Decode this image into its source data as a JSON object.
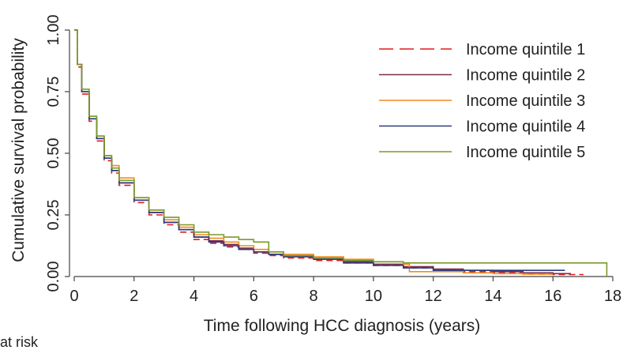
{
  "chart_data": {
    "type": "line",
    "title": "",
    "xlabel": "Time following HCC diagnosis (years)",
    "ylabel": "Cumulative survival probability",
    "xlim": [
      0,
      18
    ],
    "ylim": [
      0,
      1
    ],
    "x_ticks": [
      "0",
      "2",
      "4",
      "6",
      "8",
      "10",
      "12",
      "14",
      "16",
      "18"
    ],
    "y_ticks": [
      "0.00",
      "0.25",
      "0.50",
      "0.75",
      "1.00"
    ],
    "legend_position": "top-right",
    "grid": false,
    "series": [
      {
        "name": "Income quintile 1",
        "color": "#e41a1c",
        "dashed": true,
        "points": [
          [
            0,
            1.0
          ],
          [
            0.1,
            0.85
          ],
          [
            0.25,
            0.74
          ],
          [
            0.5,
            0.63
          ],
          [
            0.75,
            0.55
          ],
          [
            1,
            0.47
          ],
          [
            1.25,
            0.42
          ],
          [
            1.5,
            0.37
          ],
          [
            2,
            0.3
          ],
          [
            2.5,
            0.25
          ],
          [
            3,
            0.21
          ],
          [
            3.5,
            0.18
          ],
          [
            4,
            0.15
          ],
          [
            4.5,
            0.135
          ],
          [
            5,
            0.12
          ],
          [
            5.5,
            0.11
          ],
          [
            6,
            0.095
          ],
          [
            6.5,
            0.085
          ],
          [
            7,
            0.075
          ],
          [
            8,
            0.065
          ],
          [
            9,
            0.055
          ],
          [
            10,
            0.045
          ],
          [
            11,
            0.035
          ],
          [
            12,
            0.025
          ],
          [
            13,
            0.02
          ],
          [
            14,
            0.015
          ],
          [
            15,
            0.01
          ],
          [
            16,
            0.008
          ],
          [
            17,
            0.005
          ]
        ]
      },
      {
        "name": "Income quintile 2",
        "color": "#7b2d4a",
        "dashed": false,
        "points": [
          [
            0,
            1.0
          ],
          [
            0.1,
            0.86
          ],
          [
            0.25,
            0.75
          ],
          [
            0.5,
            0.64
          ],
          [
            0.75,
            0.56
          ],
          [
            1,
            0.48
          ],
          [
            1.25,
            0.43
          ],
          [
            1.5,
            0.38
          ],
          [
            2,
            0.31
          ],
          [
            2.5,
            0.26
          ],
          [
            3,
            0.22
          ],
          [
            3.5,
            0.19
          ],
          [
            4,
            0.16
          ],
          [
            4.5,
            0.145
          ],
          [
            5,
            0.13
          ],
          [
            5.5,
            0.115
          ],
          [
            6,
            0.1
          ],
          [
            6.5,
            0.09
          ],
          [
            7,
            0.08
          ],
          [
            8,
            0.07
          ],
          [
            9,
            0.06
          ],
          [
            10,
            0.05
          ],
          [
            11,
            0.04
          ],
          [
            12,
            0.03
          ],
          [
            13,
            0.025
          ],
          [
            14,
            0.02
          ],
          [
            15,
            0.015
          ],
          [
            16,
            0.012
          ],
          [
            16.6,
            0.012
          ]
        ]
      },
      {
        "name": "Income quintile 3",
        "color": "#f28c1e",
        "dashed": false,
        "points": [
          [
            0,
            1.0
          ],
          [
            0.1,
            0.86
          ],
          [
            0.25,
            0.75
          ],
          [
            0.5,
            0.65
          ],
          [
            0.75,
            0.57
          ],
          [
            1,
            0.49
          ],
          [
            1.25,
            0.45
          ],
          [
            1.5,
            0.4
          ],
          [
            2,
            0.32
          ],
          [
            2.5,
            0.27
          ],
          [
            3,
            0.23
          ],
          [
            3.5,
            0.2
          ],
          [
            4,
            0.17
          ],
          [
            4.5,
            0.155
          ],
          [
            5,
            0.14
          ],
          [
            5.5,
            0.125
          ],
          [
            6,
            0.11
          ],
          [
            6.5,
            0.1
          ],
          [
            7,
            0.09
          ],
          [
            8,
            0.08
          ],
          [
            9,
            0.07
          ],
          [
            10,
            0.06
          ],
          [
            11,
            0.05
          ],
          [
            11.2,
            0.02
          ],
          [
            12,
            0.02
          ],
          [
            13,
            0.015
          ],
          [
            14,
            0.012
          ],
          [
            15,
            0.01
          ],
          [
            16,
            0.01
          ]
        ]
      },
      {
        "name": "Income quintile 4",
        "color": "#2b3a80",
        "dashed": false,
        "points": [
          [
            0,
            1.0
          ],
          [
            0.1,
            0.86
          ],
          [
            0.25,
            0.75
          ],
          [
            0.5,
            0.64
          ],
          [
            0.75,
            0.56
          ],
          [
            1,
            0.48
          ],
          [
            1.25,
            0.43
          ],
          [
            1.5,
            0.38
          ],
          [
            2,
            0.31
          ],
          [
            2.5,
            0.26
          ],
          [
            3,
            0.22
          ],
          [
            3.5,
            0.19
          ],
          [
            4,
            0.16
          ],
          [
            4.5,
            0.14
          ],
          [
            5,
            0.125
          ],
          [
            5.5,
            0.11
          ],
          [
            6,
            0.1
          ],
          [
            6.5,
            0.09
          ],
          [
            7,
            0.08
          ],
          [
            8,
            0.07
          ],
          [
            9,
            0.055
          ],
          [
            10,
            0.045
          ],
          [
            11,
            0.035
          ],
          [
            12,
            0.025
          ],
          [
            13,
            0.025
          ],
          [
            14,
            0.025
          ],
          [
            15,
            0.025
          ],
          [
            16,
            0.025
          ],
          [
            16.4,
            0.025
          ]
        ]
      },
      {
        "name": "Income quintile 5",
        "color": "#7a9a2a",
        "dashed": false,
        "points": [
          [
            0,
            1.0
          ],
          [
            0.1,
            0.86
          ],
          [
            0.25,
            0.76
          ],
          [
            0.5,
            0.65
          ],
          [
            0.75,
            0.57
          ],
          [
            1,
            0.49
          ],
          [
            1.25,
            0.44
          ],
          [
            1.5,
            0.39
          ],
          [
            2,
            0.32
          ],
          [
            2.5,
            0.27
          ],
          [
            3,
            0.24
          ],
          [
            3.5,
            0.21
          ],
          [
            4,
            0.18
          ],
          [
            4.5,
            0.17
          ],
          [
            5,
            0.16
          ],
          [
            5.5,
            0.15
          ],
          [
            6,
            0.14
          ],
          [
            6.5,
            0.1
          ],
          [
            7,
            0.085
          ],
          [
            8,
            0.075
          ],
          [
            9,
            0.065
          ],
          [
            10,
            0.06
          ],
          [
            11,
            0.055
          ],
          [
            12,
            0.055
          ],
          [
            13,
            0.055
          ],
          [
            14,
            0.055
          ],
          [
            15,
            0.055
          ],
          [
            16,
            0.055
          ],
          [
            17,
            0.055
          ],
          [
            17.8,
            0.055
          ],
          [
            17.8,
            0.0
          ]
        ]
      }
    ]
  },
  "footer": {
    "cut_text": "at risk"
  }
}
